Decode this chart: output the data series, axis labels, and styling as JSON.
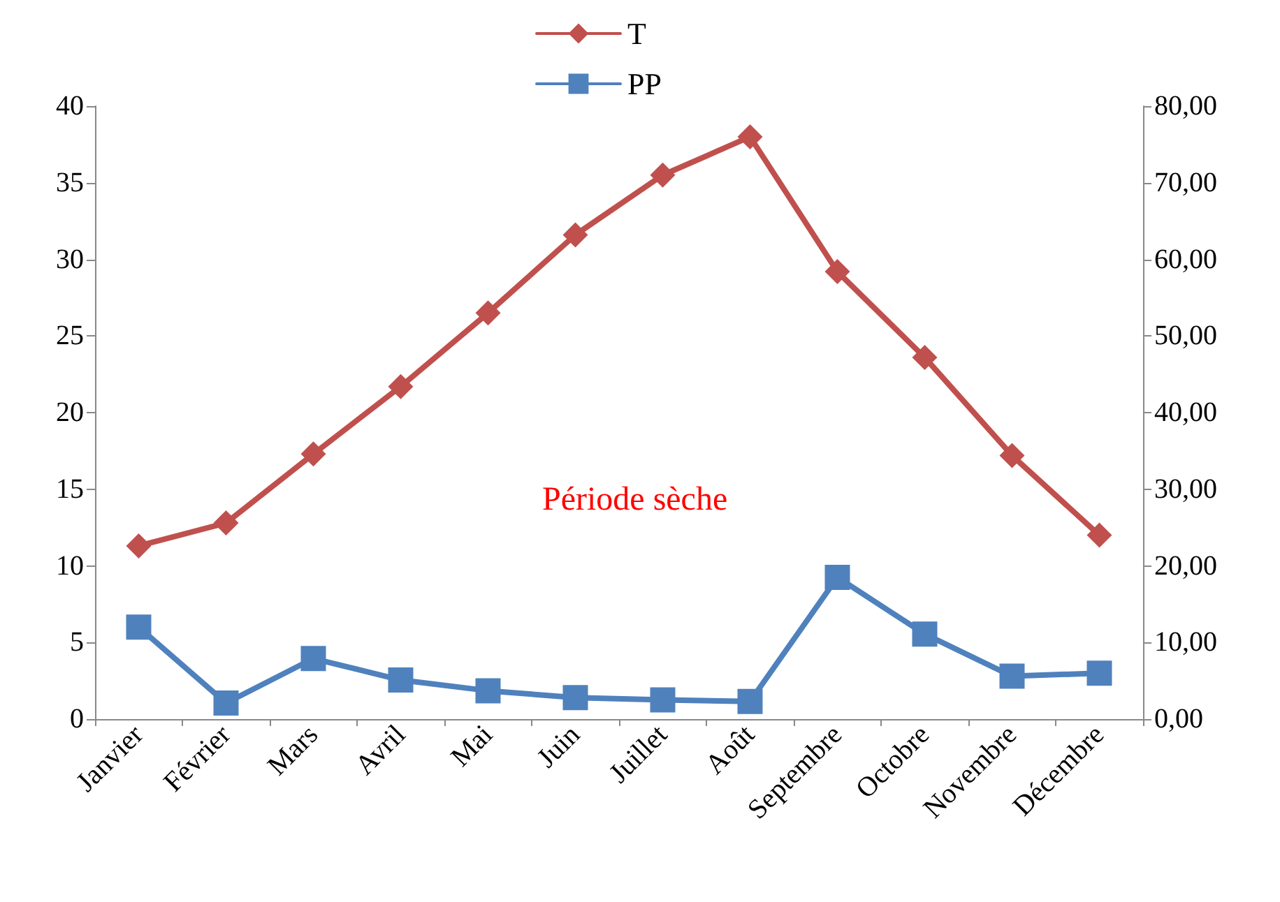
{
  "chart_data": {
    "type": "line",
    "categories": [
      "Janvier",
      "Février",
      "Mars",
      "Avril",
      "Mai",
      "Juin",
      "Juillet",
      "Août",
      "Septembre",
      "Octobre",
      "Novembre",
      "Décembre"
    ],
    "series": [
      {
        "name": "T",
        "color": "#c0504d",
        "marker": "diamond",
        "values": [
          11.3,
          12.8,
          17.3,
          21.7,
          26.5,
          31.6,
          35.5,
          38.0,
          29.2,
          23.6,
          17.2,
          12.0
        ]
      },
      {
        "name": "PP",
        "color": "#4f81bd",
        "marker": "square",
        "axis": "y2",
        "values": [
          12.0,
          2.1,
          7.9,
          5.1,
          3.7,
          2.8,
          2.5,
          2.3,
          18.5,
          11.1,
          5.6,
          6.0
        ]
      }
    ],
    "ylim": [
      0,
      40
    ],
    "yticks": [
      0,
      5,
      10,
      15,
      20,
      25,
      30,
      35,
      40
    ],
    "y2lim": [
      0,
      80
    ],
    "y2ticks": [
      {
        "value": 0,
        "label": "0,00"
      },
      {
        "value": 10,
        "label": "10,00"
      },
      {
        "value": 20,
        "label": "20,00"
      },
      {
        "value": 30,
        "label": "30,00"
      },
      {
        "value": 40,
        "label": "40,00"
      },
      {
        "value": 50,
        "label": "50,00"
      },
      {
        "value": 60,
        "label": "60,00"
      },
      {
        "value": 70,
        "label": "70,00"
      },
      {
        "value": 80,
        "label": "80,00"
      }
    ],
    "annotations": [
      "Période sèche"
    ],
    "grid": false,
    "legend": "top",
    "line_style": "solid"
  }
}
